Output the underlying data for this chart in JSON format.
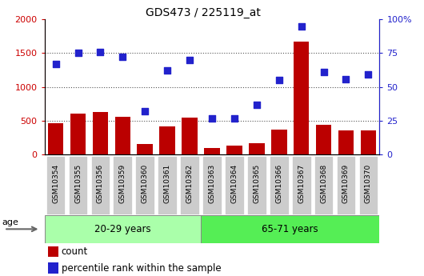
{
  "title": "GDS473 / 225119_at",
  "categories": [
    "GSM10354",
    "GSM10355",
    "GSM10356",
    "GSM10359",
    "GSM10360",
    "GSM10361",
    "GSM10362",
    "GSM10363",
    "GSM10364",
    "GSM10365",
    "GSM10366",
    "GSM10367",
    "GSM10368",
    "GSM10369",
    "GSM10370"
  ],
  "count_values": [
    460,
    610,
    630,
    555,
    155,
    415,
    545,
    95,
    130,
    165,
    370,
    1670,
    440,
    360,
    360
  ],
  "percentile_values": [
    67,
    75,
    76,
    72,
    32,
    62,
    70,
    27,
    27,
    37,
    55,
    95,
    61,
    56,
    59
  ],
  "group1_label": "20-29 years",
  "group2_label": "65-71 years",
  "group1_count": 7,
  "group2_count": 8,
  "ylim_left": [
    0,
    2000
  ],
  "ylim_right": [
    0,
    100
  ],
  "yticks_left": [
    0,
    500,
    1000,
    1500,
    2000
  ],
  "yticks_right": [
    0,
    25,
    50,
    75,
    100
  ],
  "bar_color": "#bb0000",
  "dot_color": "#2222cc",
  "group1_bg": "#aaffaa",
  "group2_bg": "#55ee55",
  "age_label": "age",
  "legend_count": "count",
  "legend_pct": "percentile rank within the sample",
  "ylabel_left_color": "#cc0000",
  "ylabel_right_color": "#2222cc",
  "grid_color": "#555555",
  "xticklabel_bg": "#cccccc"
}
